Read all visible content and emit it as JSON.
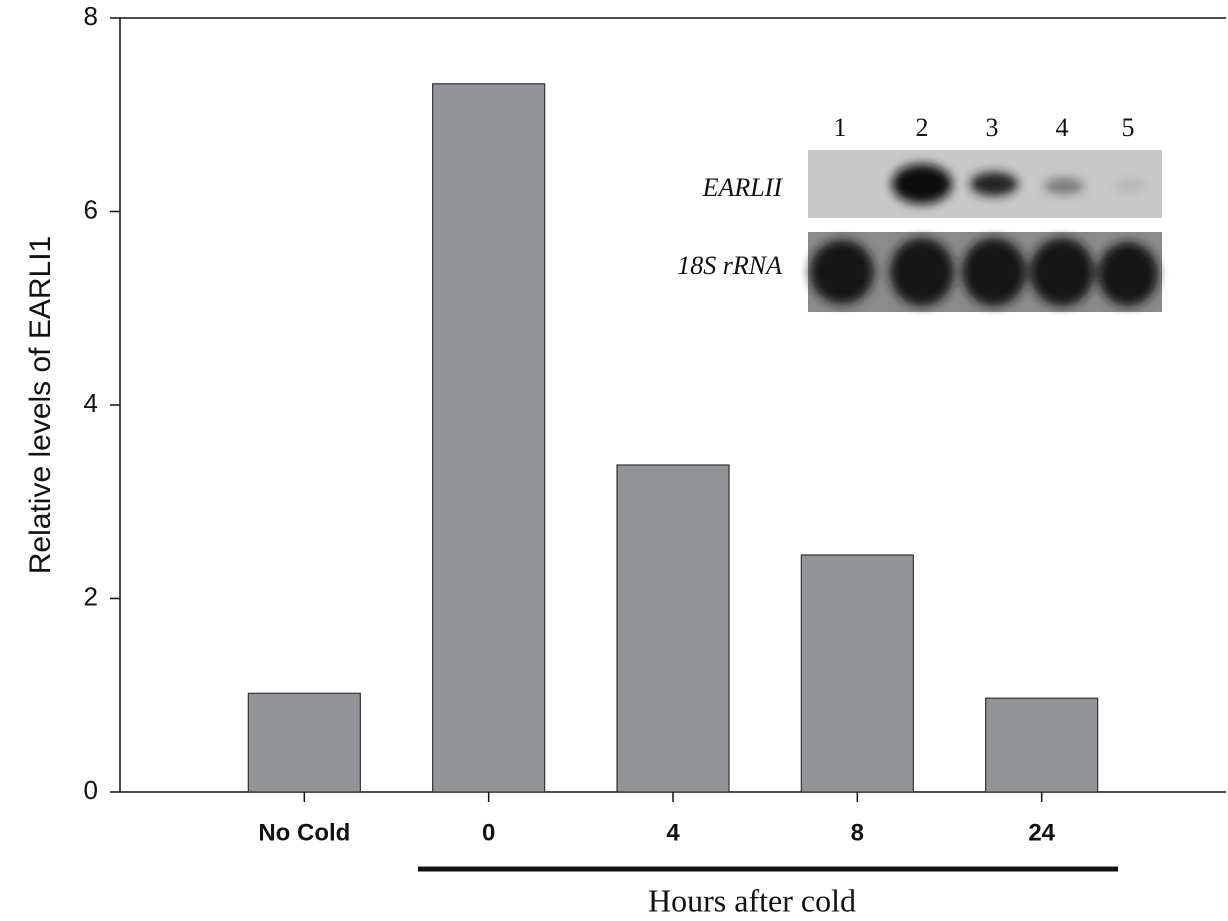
{
  "chart_data": {
    "type": "bar",
    "y_label": "Relative levels of EARLI1",
    "x_label": "Hours after cold",
    "categories": [
      "No Cold",
      "0",
      "4",
      "8",
      "24"
    ],
    "values": [
      1.02,
      7.32,
      3.38,
      2.45,
      0.97
    ],
    "color": "#929497",
    "ylim": [
      0,
      8
    ],
    "yticks": [
      0,
      2,
      4,
      6,
      8
    ],
    "inset": {
      "lanes": [
        "1",
        "2",
        "3",
        "4",
        "5"
      ],
      "rows": [
        "EARLII",
        "18S rRNA"
      ]
    }
  }
}
